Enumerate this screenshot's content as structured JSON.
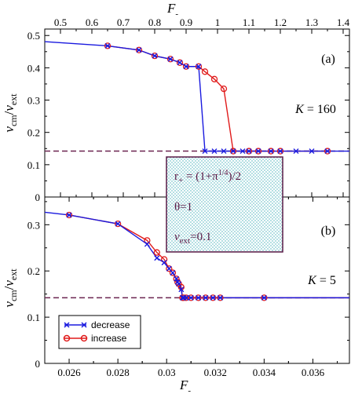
{
  "chart_data": [
    {
      "type": "line",
      "panel_letter": "(a)",
      "annotation": "K = 160",
      "xlabel": "F",
      "xlim": [
        0.45,
        1.42
      ],
      "xticks": [
        "0.5",
        "0.6",
        "0.7",
        "0.8",
        "0.9",
        "1",
        "1.1",
        "1.2",
        "1.3",
        "1.4"
      ],
      "xtick_values": [
        0.5,
        0.6,
        0.7,
        0.8,
        0.9,
        1.0,
        1.1,
        1.2,
        1.3,
        1.4
      ],
      "ylim": [
        0,
        0.52
      ],
      "yticks": [
        "0",
        "0.1",
        "0.2",
        "0.3",
        "0.4",
        "0.5"
      ],
      "ytick_values": [
        0,
        0.1,
        0.2,
        0.3,
        0.4,
        0.5
      ],
      "ylabel": "v",
      "reference_line": 0.142,
      "grid": false,
      "series": [
        {
          "name": "decrease",
          "color": "#1a1adf",
          "marker": "x",
          "x": [
            0.45,
            0.65,
            0.75,
            0.8,
            0.85,
            0.88,
            0.9,
            0.94,
            0.96,
            0.99,
            1.02,
            1.05,
            1.08,
            1.1,
            1.13,
            1.17,
            1.2,
            1.25,
            1.3,
            1.35,
            1.42
          ],
          "y": [
            0.481,
            0.468,
            0.455,
            0.437,
            0.427,
            0.416,
            0.404,
            0.404,
            0.142,
            0.142,
            0.142,
            0.142,
            0.142,
            0.142,
            0.142,
            0.142,
            0.142,
            0.142,
            0.142,
            0.142,
            0.142
          ]
        },
        {
          "name": "increase",
          "color": "#e01a1a",
          "marker": "o",
          "x": [
            0.65,
            0.75,
            0.8,
            0.85,
            0.88,
            0.9,
            0.94,
            0.96,
            0.99,
            1.02,
            1.05,
            1.1,
            1.13,
            1.17,
            1.2,
            1.35
          ],
          "y": [
            0.468,
            0.455,
            0.437,
            0.427,
            0.416,
            0.404,
            0.404,
            0.388,
            0.365,
            0.335,
            0.142,
            0.142,
            0.142,
            0.142,
            0.142,
            0.142
          ]
        }
      ]
    },
    {
      "type": "line",
      "panel_letter": "(b)",
      "annotation": "K = 5",
      "xlabel": "F",
      "xlim": [
        0.025,
        0.0375
      ],
      "xticks": [
        "0.026",
        "0.028",
        "0.03",
        "0.032",
        "0.034",
        "0.036"
      ],
      "xtick_values": [
        0.026,
        0.028,
        0.03,
        0.032,
        0.034,
        0.036
      ],
      "ylim": [
        0,
        0.36
      ],
      "yticks": [
        "0",
        "0.1",
        "0.2",
        "0.3"
      ],
      "ytick_values": [
        0,
        0.1,
        0.2,
        0.3
      ],
      "ylabel": "v",
      "reference_line": 0.142,
      "grid": false,
      "series": [
        {
          "name": "decrease",
          "color": "#1a1adf",
          "marker": "x",
          "x": [
            0.025,
            0.026,
            0.028,
            0.0292,
            0.0296,
            0.0299,
            0.0301,
            0.03025,
            0.0304,
            0.03045,
            0.0305,
            0.0306,
            0.03065,
            0.0307,
            0.0308,
            0.031,
            0.0313,
            0.0316,
            0.0319,
            0.0322,
            0.034,
            0.0375
          ],
          "y": [
            0.327,
            0.321,
            0.302,
            0.258,
            0.228,
            0.218,
            0.205,
            0.196,
            0.183,
            0.176,
            0.172,
            0.16,
            0.142,
            0.142,
            0.142,
            0.142,
            0.142,
            0.142,
            0.142,
            0.142,
            0.142,
            0.142
          ]
        },
        {
          "name": "increase",
          "color": "#e01a1a",
          "marker": "o",
          "x": [
            0.026,
            0.028,
            0.0292,
            0.0296,
            0.0299,
            0.0301,
            0.03025,
            0.0304,
            0.03045,
            0.0305,
            0.0306,
            0.03065,
            0.0307,
            0.0308,
            0.031,
            0.0313,
            0.0316,
            0.0319,
            0.0322,
            0.034,
            0.0375
          ],
          "y": [
            0.321,
            0.302,
            0.266,
            0.24,
            0.225,
            0.205,
            0.196,
            0.183,
            0.176,
            0.172,
            0.165,
            0.142,
            0.142,
            0.142,
            0.142,
            0.142,
            0.142,
            0.142,
            0.142,
            0.142,
            0.142
          ]
        }
      ]
    }
  ],
  "shared": {
    "xlabel_sub": "-",
    "ylabel_v": "v",
    "ylabel_sub_num": "cm",
    "ylabel_slash": "/",
    "ylabel_v2": "v",
    "ylabel_sub_den": "ext"
  },
  "info_box": {
    "line1_r": "r",
    "line1_plus": "+",
    "line1_eq": " = (1+π",
    "line1_sup": "1/4",
    "line1_end": ")/2",
    "line2": "θ=1",
    "line3_v": "v",
    "line3_sub": "ext",
    "line3_val": "=0.1",
    "color": "#5a1a46",
    "fill": "#bfe3e3"
  },
  "legend": {
    "decrease_label": "decrease",
    "increase_label": "increase"
  },
  "colors": {
    "decrease": "#1a1adf",
    "increase": "#e01a1a",
    "reference": "#6b2450"
  }
}
